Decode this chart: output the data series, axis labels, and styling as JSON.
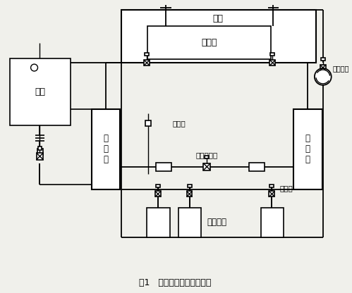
{
  "bg_color": "#f0f0eb",
  "labels": {
    "zhuji": "主机",
    "zhufaqi": "蒸发器",
    "shuixiang": "水箱",
    "jishuixiang": "集\n水\n箱",
    "fenshuixiang": "分\n水\n箱",
    "lengdongshuibeng": "冷冻水泵",
    "paiqikou": "排气口",
    "yacha": "压差旁通阀",
    "moduan": "末端设备",
    "diandong": "电动阀",
    "caption": "图1   改造前空调冷冻水系统"
  }
}
